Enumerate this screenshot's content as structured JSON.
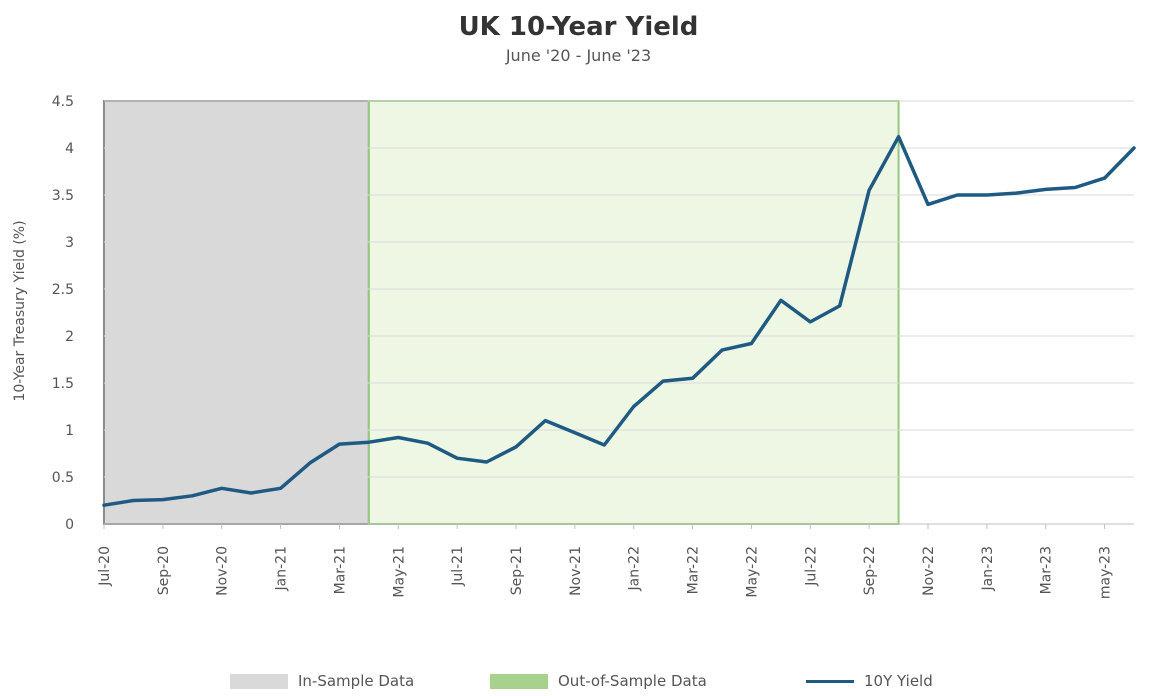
{
  "chart_data": {
    "type": "line",
    "title": "UK 10-Year Yield",
    "subtitle": "June '20 - June '23",
    "ylabel": "10-Year Treasury Yield (%)",
    "xlabel": "",
    "ylim": [
      0,
      4.5
    ],
    "yticks": [
      "0",
      "0.5",
      "1",
      "1.5",
      "2",
      "2.5",
      "3",
      "3.5",
      "4",
      "4.5"
    ],
    "grid": true,
    "legend_position": "bottom",
    "x_labels": [
      "Jul-20",
      "Sep-20",
      "Nov-20",
      "Jan-21",
      "Mar-21",
      "May-21",
      "Jul-21",
      "Sep-21",
      "Nov-21",
      "Jan-22",
      "Mar-22",
      "May-22",
      "Jul-22",
      "Sep-22",
      "Nov-22",
      "Jan-23",
      "Mar-23",
      "may-23"
    ],
    "x": [
      "Jul-20",
      "Aug-20",
      "Sep-20",
      "Oct-20",
      "Nov-20",
      "Dec-20",
      "Jan-21",
      "Feb-21",
      "Mar-21",
      "Apr-21",
      "May-21",
      "Jun-21",
      "Jul-21",
      "Aug-21",
      "Sep-21",
      "Oct-21",
      "Nov-21",
      "Dec-21",
      "Jan-22",
      "Feb-22",
      "Mar-22",
      "Apr-22",
      "May-22",
      "Jun-22",
      "Jul-22",
      "Aug-22",
      "Sep-22",
      "Oct-22",
      "Nov-22",
      "Dec-22",
      "Jan-23",
      "Feb-23",
      "Mar-23",
      "Apr-23",
      "May-23",
      "Jun-23"
    ],
    "series": [
      {
        "name": "10Y Yield",
        "color": "#1f5a82",
        "values": [
          0.2,
          0.25,
          0.26,
          0.3,
          0.38,
          0.33,
          0.38,
          0.65,
          0.85,
          0.87,
          0.92,
          0.86,
          0.7,
          0.66,
          0.82,
          1.1,
          0.97,
          0.84,
          1.25,
          1.52,
          1.55,
          1.85,
          1.92,
          2.38,
          2.15,
          2.32,
          3.55,
          4.12,
          3.4,
          3.5,
          3.5,
          3.52,
          3.56,
          3.58,
          3.68,
          4.0
        ]
      }
    ],
    "regions": [
      {
        "name": "In-Sample Data",
        "start": "Jul-20",
        "end": "Apr-21",
        "color": "#d9d9d9",
        "border": "#8c8c8c"
      },
      {
        "name": "Out-of-Sample Data",
        "start": "Apr-21",
        "end": "Oct-22",
        "color": "#eef7e4",
        "border": "#92c87a"
      }
    ],
    "legend": [
      {
        "label": "In-Sample Data",
        "kind": "box",
        "color": "#d9d9d9"
      },
      {
        "label": "Out-of-Sample Data",
        "kind": "box",
        "color": "#a9d18e"
      },
      {
        "label": "10Y Yield",
        "kind": "line",
        "color": "#1f5a82"
      }
    ]
  }
}
